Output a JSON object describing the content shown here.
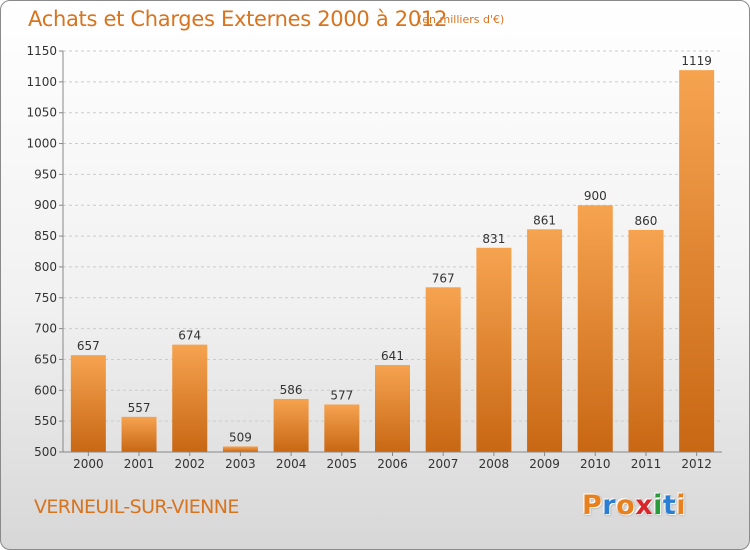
{
  "title": "Achats et Charges Externes 2000 à 2012",
  "subtitle": "(en milliers d'€)",
  "city": "VERNEUIL-SUR-VIENNE",
  "logo": {
    "letters": [
      "P",
      "r",
      "o",
      "x",
      "i",
      "t",
      "i"
    ],
    "colors": [
      "#e8801e",
      "#2a7fd4",
      "#e8801e",
      "#d8262a",
      "#2a9a3a",
      "#2a7fd4",
      "#e8801e"
    ]
  },
  "colors": {
    "bar_top": "#f6a350",
    "bar_bottom": "#c86714",
    "accent": "#d8731e"
  },
  "chart_data": {
    "type": "bar",
    "categories": [
      "2000",
      "2001",
      "2002",
      "2003",
      "2004",
      "2005",
      "2006",
      "2007",
      "2008",
      "2009",
      "2010",
      "2011",
      "2012"
    ],
    "values": [
      657,
      557,
      674,
      509,
      586,
      577,
      641,
      767,
      831,
      861,
      900,
      860,
      1119
    ],
    "ylim": [
      500,
      1150
    ],
    "yticks": [
      500,
      550,
      600,
      650,
      700,
      750,
      800,
      850,
      900,
      950,
      1000,
      1050,
      1100,
      1150
    ],
    "grid": true
  }
}
